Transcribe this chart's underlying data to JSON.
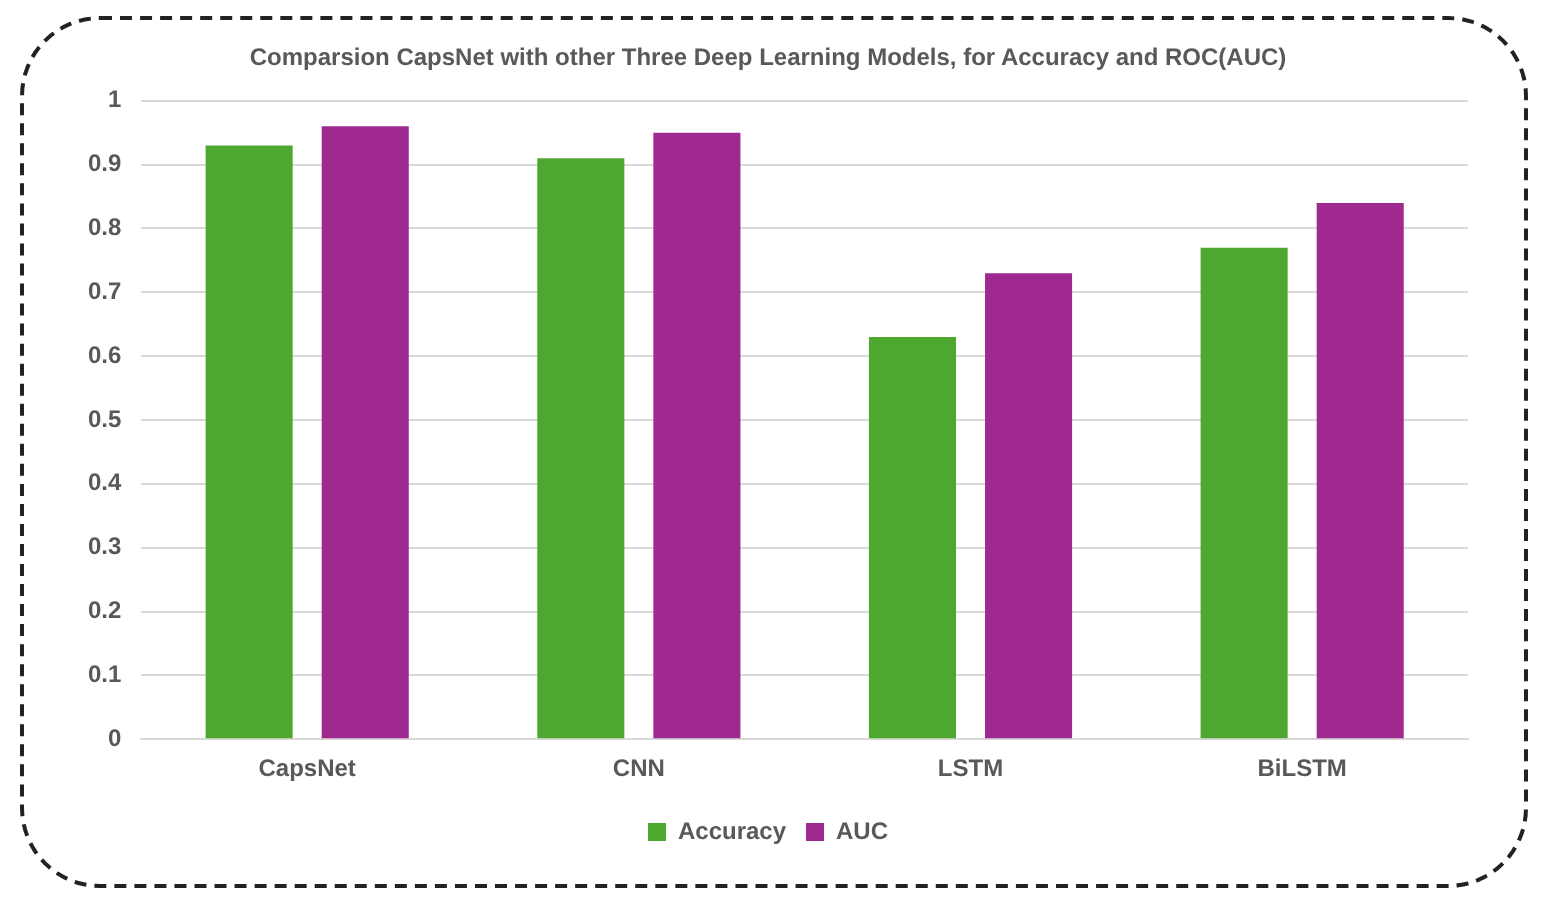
{
  "chart_data": {
    "type": "bar",
    "title": "Comparsion CapsNet with other Three Deep Learning Models, for Accuracy and ROC(AUC)",
    "categories": [
      "CapsNet",
      "CNN",
      "LSTM",
      "BiLSTM"
    ],
    "series": [
      {
        "name": "Accuracy",
        "color": "#4ea72e",
        "values": [
          0.93,
          0.91,
          0.63,
          0.77
        ]
      },
      {
        "name": "AUC",
        "color": "#a0298f",
        "values": [
          0.96,
          0.95,
          0.73,
          0.84
        ]
      }
    ],
    "ylim": [
      0,
      1
    ],
    "yticks": [
      0,
      0.1,
      0.2,
      0.3,
      0.4,
      0.5,
      0.6,
      0.7,
      0.8,
      0.9,
      1
    ],
    "grid": "y",
    "legend": "bottom"
  }
}
